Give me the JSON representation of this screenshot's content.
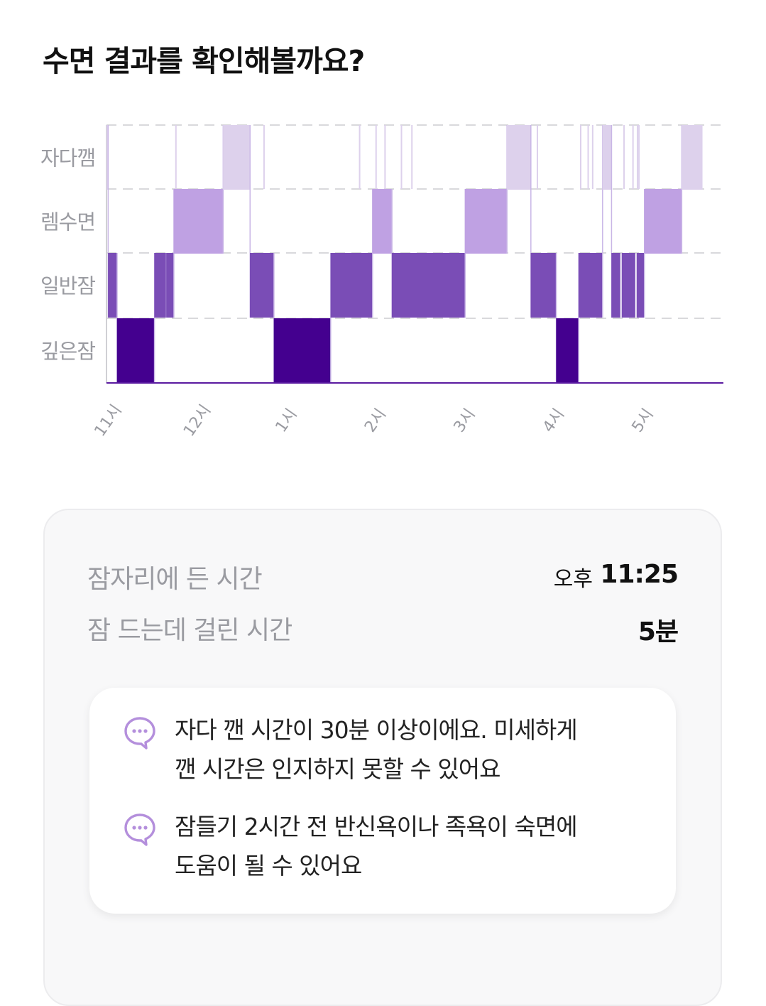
{
  "title": "수면 결과를 확인해볼까요?",
  "chart_data": {
    "type": "heatmap",
    "stages": [
      "자다깸",
      "렘수면",
      "일반잠",
      "깊은잠"
    ],
    "x_ticks": [
      "11시",
      "12시",
      "1시",
      "2시",
      "3시",
      "4시",
      "5시"
    ],
    "x_range": [
      "23:00",
      "05:53"
    ],
    "colors": {
      "자다깸": "#ddd1ec",
      "렘수면": "#bfa1e3",
      "일반잠": "#7a4db6",
      "깊은잠": "#44008f"
    },
    "segments": [
      {
        "stage": "자다깸",
        "start": "23:00",
        "end": "23:01"
      },
      {
        "stage": "일반잠",
        "start": "23:01",
        "end": "23:07"
      },
      {
        "stage": "깊은잠",
        "start": "23:07",
        "end": "23:32"
      },
      {
        "stage": "일반잠",
        "start": "23:32",
        "end": "23:40"
      },
      {
        "stage": "일반잠",
        "start": "23:40",
        "end": "23:45"
      },
      {
        "stage": "렘수면",
        "start": "23:45",
        "end": "00:18"
      },
      {
        "stage": "자다깸",
        "start": "00:18",
        "end": "00:36"
      },
      {
        "stage": "일반잠",
        "start": "00:36",
        "end": "00:52"
      },
      {
        "stage": "깊은잠",
        "start": "00:52",
        "end": "01:30"
      },
      {
        "stage": "일반잠",
        "start": "01:30",
        "end": "01:58"
      },
      {
        "stage": "렘수면",
        "start": "01:58",
        "end": "02:11"
      },
      {
        "stage": "일반잠",
        "start": "02:11",
        "end": "03:00"
      },
      {
        "stage": "렘수면",
        "start": "03:00",
        "end": "03:28"
      },
      {
        "stage": "자다깸",
        "start": "03:28",
        "end": "03:44"
      },
      {
        "stage": "일반잠",
        "start": "03:44",
        "end": "04:01"
      },
      {
        "stage": "깊은잠",
        "start": "04:01",
        "end": "04:16"
      },
      {
        "stage": "일반잠",
        "start": "04:16",
        "end": "04:32"
      },
      {
        "stage": "자다깸",
        "start": "04:32",
        "end": "04:38"
      },
      {
        "stage": "일반잠",
        "start": "04:38",
        "end": "04:44"
      },
      {
        "stage": "일반잠",
        "start": "04:45",
        "end": "04:54"
      },
      {
        "stage": "일반잠",
        "start": "04:55",
        "end": "05:00"
      },
      {
        "stage": "렘수면",
        "start": "05:00",
        "end": "05:25"
      },
      {
        "stage": "자다깸",
        "start": "05:25",
        "end": "05:39"
      }
    ],
    "thin_lines": [
      "23:46",
      "00:45",
      "01:49",
      "02:00",
      "02:06",
      "02:17",
      "02:24",
      "03:39",
      "03:48",
      "04:17",
      "04:22",
      "04:25",
      "04:37",
      "04:46",
      "04:52",
      "04:55",
      "04:56"
    ]
  },
  "summary": {
    "bedtime_label": "잠자리에 든 시간",
    "bedtime_period": "오후",
    "bedtime_value": "11:25",
    "latency_label": "잠 드는데 걸린 시간",
    "latency_value": "5분"
  },
  "tips": [
    {
      "icon": "chat-bubble-icon",
      "line1": "자다 깬 시간이 30분 이상이에요. 미세하게",
      "line2": "깬 시간은 인지하지 못할 수 있어요"
    },
    {
      "icon": "chat-bubble-icon",
      "line1": "잠들기 2시간 전 반신욕이나 족욕이 숙면에",
      "line2": "도움이 될 수 있어요"
    }
  ],
  "accent_color": "#b48fdc"
}
